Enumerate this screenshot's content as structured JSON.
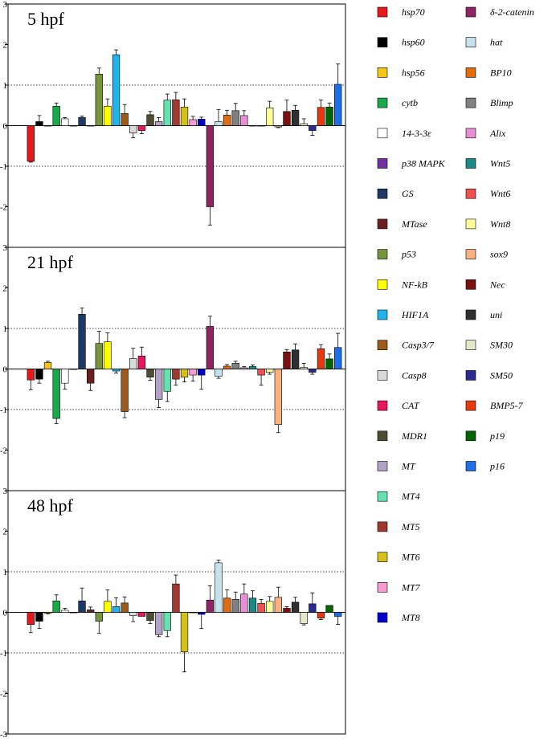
{
  "chart_data": {
    "type": "bar",
    "ylim": [
      -3,
      3
    ],
    "yticks": [
      3,
      2,
      1,
      0,
      -1,
      -2,
      -3
    ],
    "reference_lines": [
      1,
      -1
    ],
    "genes": [
      "hsp70",
      "hsp60",
      "hsp56",
      "cytb",
      "14-3-3ε",
      "p38 MAPK",
      "GS",
      "MTase",
      "p53",
      "NF-kB",
      "HIF1A",
      "Casp3/7",
      "Casp8",
      "CAT",
      "MDR1",
      "MT",
      "MT4",
      "MT5",
      "MT6",
      "MT7",
      "MT8",
      "δ-2-catenin",
      "hat",
      "BP10",
      "Blimp",
      "Alix",
      "Wnt5",
      "Wnt6",
      "Wnt8",
      "sox9",
      "Nec",
      "uni",
      "SM30",
      "SM50",
      "BMP5-7",
      "p19",
      "p16"
    ],
    "colors": [
      "#e41a1c",
      "#000000",
      "#f5c518",
      "#1aa84a",
      "#ffffff",
      "#7030a0",
      "#1f3864",
      "#6b2020",
      "#77933c",
      "#ffff00",
      "#1eb4ec",
      "#9c5b1c",
      "#d9d9d9",
      "#e8175d",
      "#4d4d33",
      "#b3a2c7",
      "#66e0b0",
      "#a0392f",
      "#d4c21a",
      "#f79bd2",
      "#0000cc",
      "#8e2463",
      "#c5e3ef",
      "#e36c0a",
      "#808080",
      "#e68fd6",
      "#1a8a86",
      "#f05050",
      "#ffff99",
      "#fab07f",
      "#7a1010",
      "#303030",
      "#e6e6c8",
      "#2a2a90",
      "#e63a0c",
      "#006400",
      "#1e6ee8"
    ],
    "series": [
      {
        "name": "5 hpf",
        "values": [
          -0.88,
          0.1,
          0.0,
          0.48,
          0.17,
          0.0,
          0.2,
          0.0,
          1.27,
          0.48,
          1.75,
          0.3,
          -0.18,
          -0.12,
          0.27,
          0.1,
          0.63,
          0.64,
          0.46,
          0.15,
          0.16,
          -2.0,
          0.1,
          0.26,
          0.37,
          0.25,
          0.0,
          0.0,
          0.44,
          -0.03,
          0.35,
          0.38,
          0.05,
          -0.12,
          0.45,
          0.46,
          1.02
        ],
        "errors": [
          0.02,
          0.15,
          0.0,
          0.08,
          0.03,
          0.0,
          0.04,
          0.0,
          0.15,
          0.18,
          0.12,
          0.22,
          0.12,
          0.08,
          0.08,
          0.1,
          0.15,
          0.18,
          0.2,
          0.08,
          0.05,
          0.45,
          0.3,
          0.12,
          0.18,
          0.12,
          0.0,
          0.0,
          0.16,
          0.02,
          0.28,
          0.12,
          0.12,
          0.12,
          0.18,
          0.1,
          0.5
        ]
      },
      {
        "name": "21 hpf",
        "values": [
          -0.27,
          -0.25,
          0.16,
          -1.22,
          -0.35,
          0.0,
          1.35,
          -0.35,
          0.63,
          0.67,
          -0.05,
          -1.05,
          0.26,
          0.32,
          -0.2,
          -0.75,
          -0.55,
          -0.25,
          -0.2,
          -0.15,
          -0.15,
          1.05,
          -0.18,
          0.07,
          0.14,
          0.03,
          0.06,
          -0.15,
          -0.08,
          -1.37,
          0.42,
          0.47,
          0.04,
          -0.08,
          0.5,
          0.25,
          0.53
        ],
        "errors": [
          0.24,
          0.1,
          0.03,
          0.13,
          0.15,
          0.0,
          0.15,
          0.18,
          0.3,
          0.22,
          0.05,
          0.15,
          0.25,
          0.22,
          0.08,
          0.2,
          0.25,
          0.15,
          0.12,
          0.15,
          0.35,
          0.25,
          0.05,
          0.04,
          0.05,
          0.03,
          0.04,
          0.25,
          0.05,
          0.2,
          0.06,
          0.15,
          0.1,
          0.05,
          0.1,
          0.12,
          0.35
        ]
      },
      {
        "name": "48 hpf",
        "values": [
          -0.3,
          -0.22,
          -0.02,
          0.28,
          0.05,
          0.0,
          0.28,
          0.06,
          -0.22,
          0.27,
          0.14,
          0.23,
          -0.08,
          -0.1,
          -0.2,
          -0.55,
          -0.45,
          0.7,
          -0.97,
          0.0,
          -0.05,
          0.3,
          1.22,
          0.35,
          0.32,
          0.45,
          0.35,
          0.22,
          0.27,
          0.37,
          0.1,
          0.25,
          -0.28,
          0.21,
          -0.14,
          0.17,
          -0.1
        ],
        "errors": [
          0.2,
          0.18,
          0.02,
          0.15,
          0.05,
          0.0,
          0.32,
          0.07,
          0.3,
          0.28,
          0.22,
          0.15,
          0.15,
          0.0,
          0.08,
          0.05,
          0.15,
          0.22,
          0.5,
          0.0,
          0.35,
          0.35,
          0.07,
          0.2,
          0.18,
          0.25,
          0.18,
          0.1,
          0.12,
          0.25,
          0.04,
          0.12,
          0.03,
          0.27,
          0.04,
          0.0,
          0.2
        ]
      }
    ]
  }
}
